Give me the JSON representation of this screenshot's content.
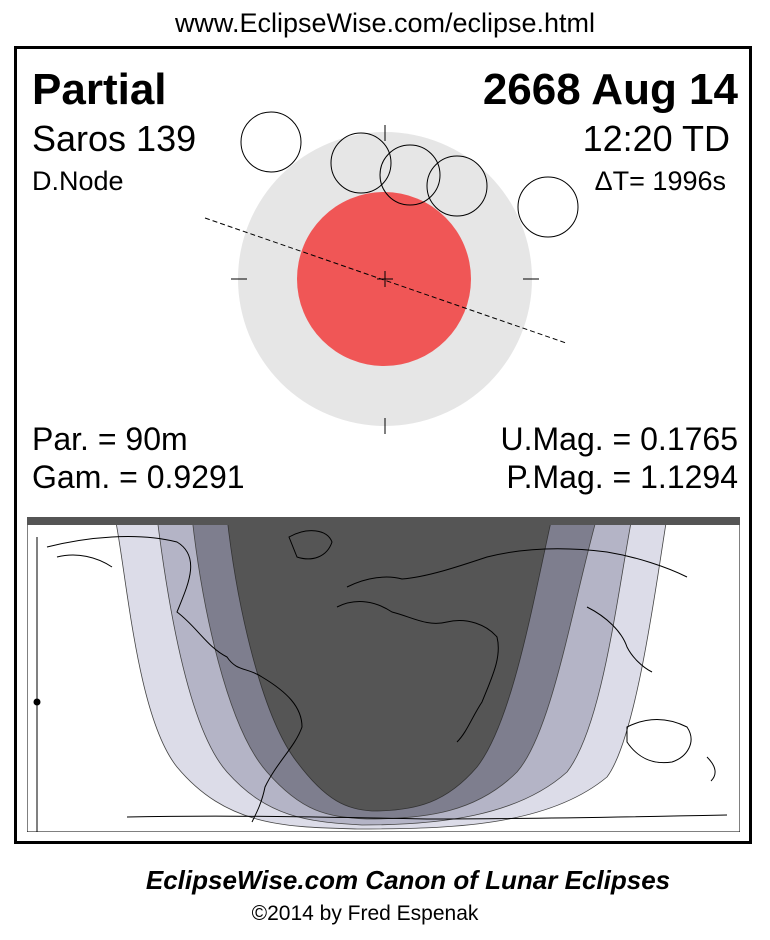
{
  "header": {
    "url": "www.EclipseWise.com/eclipse.html"
  },
  "eclipse": {
    "type": "Partial",
    "date": "2668 Aug 14",
    "saros": "Saros 139",
    "time": "12:20 TD",
    "node": "D.Node",
    "delta_t": "ΔT=   1996s",
    "partial_duration": "Par. =  90m",
    "gamma": "Gam. = 0.9291",
    "umbral_magnitude": "U.Mag. = 0.1765",
    "penumbral_magnitude": "P.Mag. = 1.1294"
  },
  "colors": {
    "umbra": "#f05656",
    "penumbra": "#e6e6e6",
    "map_night": "#555555",
    "map_band_dark": "#7e7e8e",
    "map_band_mid": "#b4b4c6",
    "map_band_light": "#dcdce8"
  },
  "footer": {
    "title": "EclipseWise.com Canon of Lunar Eclipses",
    "credit": "©2014 by Fred Espenak"
  }
}
